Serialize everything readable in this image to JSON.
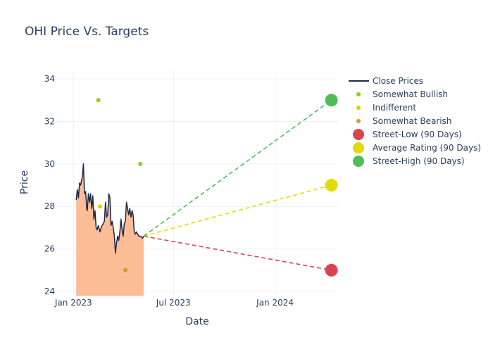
{
  "chart_data": {
    "type": "line",
    "title": "OHI Price Vs. Targets",
    "xlabel": "Date",
    "ylabel": "Price",
    "ylim": [
      23.8,
      34.4
    ],
    "yticks": [
      24,
      26,
      28,
      30,
      32,
      34
    ],
    "xlim": [
      "2022-12-01",
      "2024-04-24"
    ],
    "xticks": [
      {
        "date": "2023-01-01",
        "label": "Jan 2023"
      },
      {
        "date": "2023-07-01",
        "label": "Jul 2023"
      },
      {
        "date": "2024-01-01",
        "label": "Jan 2024"
      }
    ],
    "grid": true,
    "legend_position": "right",
    "close_prices": {
      "name": "Close Prices",
      "color": "#1f2a44",
      "fill_color": "#fbbc96",
      "x": [
        "2023-01-06",
        "2023-01-08",
        "2023-01-10",
        "2023-01-12",
        "2023-01-14",
        "2023-01-17",
        "2023-01-19",
        "2023-01-21",
        "2023-01-23",
        "2023-01-25",
        "2023-01-26",
        "2023-01-28",
        "2023-01-30",
        "2023-02-01",
        "2023-02-03",
        "2023-02-05",
        "2023-02-07",
        "2023-02-09",
        "2023-02-11",
        "2023-02-13",
        "2023-02-15",
        "2023-02-18",
        "2023-02-20",
        "2023-02-22",
        "2023-02-24",
        "2023-02-26",
        "2023-02-28",
        "2023-03-02",
        "2023-03-04",
        "2023-03-06",
        "2023-03-08",
        "2023-03-10",
        "2023-03-12",
        "2023-03-14",
        "2023-03-16",
        "2023-03-18",
        "2023-03-20",
        "2023-03-22",
        "2023-03-24",
        "2023-03-26",
        "2023-03-28",
        "2023-03-30",
        "2023-04-01",
        "2023-04-03",
        "2023-04-05",
        "2023-04-07",
        "2023-04-09",
        "2023-04-11",
        "2023-04-13",
        "2023-04-15",
        "2023-04-17",
        "2023-04-19",
        "2023-04-21",
        "2023-04-23",
        "2023-04-25",
        "2023-04-27",
        "2023-04-29",
        "2023-05-01",
        "2023-05-03",
        "2023-05-06",
        "2023-05-08"
      ],
      "y": [
        28.3,
        28.8,
        28.4,
        29.1,
        29.0,
        29.4,
        30.0,
        28.6,
        28.7,
        27.9,
        27.8,
        28.6,
        28.2,
        28.6,
        27.9,
        28.5,
        27.4,
        27.8,
        27.0,
        26.9,
        27.1,
        26.8,
        27.0,
        27.1,
        27.2,
        27.3,
        28.2,
        27.5,
        27.6,
        28.6,
        28.4,
        27.1,
        27.3,
        27.0,
        26.6,
        25.8,
        26.3,
        26.6,
        26.4,
        26.8,
        27.4,
        26.9,
        26.6,
        27.2,
        27.3,
        28.2,
        27.9,
        27.6,
        27.9,
        27.5,
        27.8,
        27.6,
        26.8,
        26.7,
        26.8,
        26.7,
        26.6,
        26.6,
        26.6,
        26.5,
        26.6
      ]
    },
    "analyst_ratings": [
      {
        "name": "Somewhat Bullish",
        "color": "#8ccf1d",
        "points": [
          {
            "x": "2023-02-15",
            "y": 33
          },
          {
            "x": "2023-05-02",
            "y": 30
          }
        ]
      },
      {
        "name": "Indifferent",
        "color": "#d9d200",
        "points": [
          {
            "x": "2023-02-18",
            "y": 28
          }
        ]
      },
      {
        "name": "Somewhat Bearish",
        "color": "#de9525",
        "points": [
          {
            "x": "2023-04-05",
            "y": 25
          }
        ]
      }
    ],
    "targets": {
      "start": {
        "x": "2023-05-08",
        "y": 26.6
      },
      "end_date": "2024-04-12",
      "series": [
        {
          "name": "Street-Low (90 Days)",
          "value": 25,
          "color": "#d9454f"
        },
        {
          "name": "Average Rating (90 Days)",
          "value": 29,
          "color": "#e0dc00"
        },
        {
          "name": "Street-High (90 Days)",
          "value": 33,
          "color": "#4dbf55"
        }
      ]
    }
  }
}
